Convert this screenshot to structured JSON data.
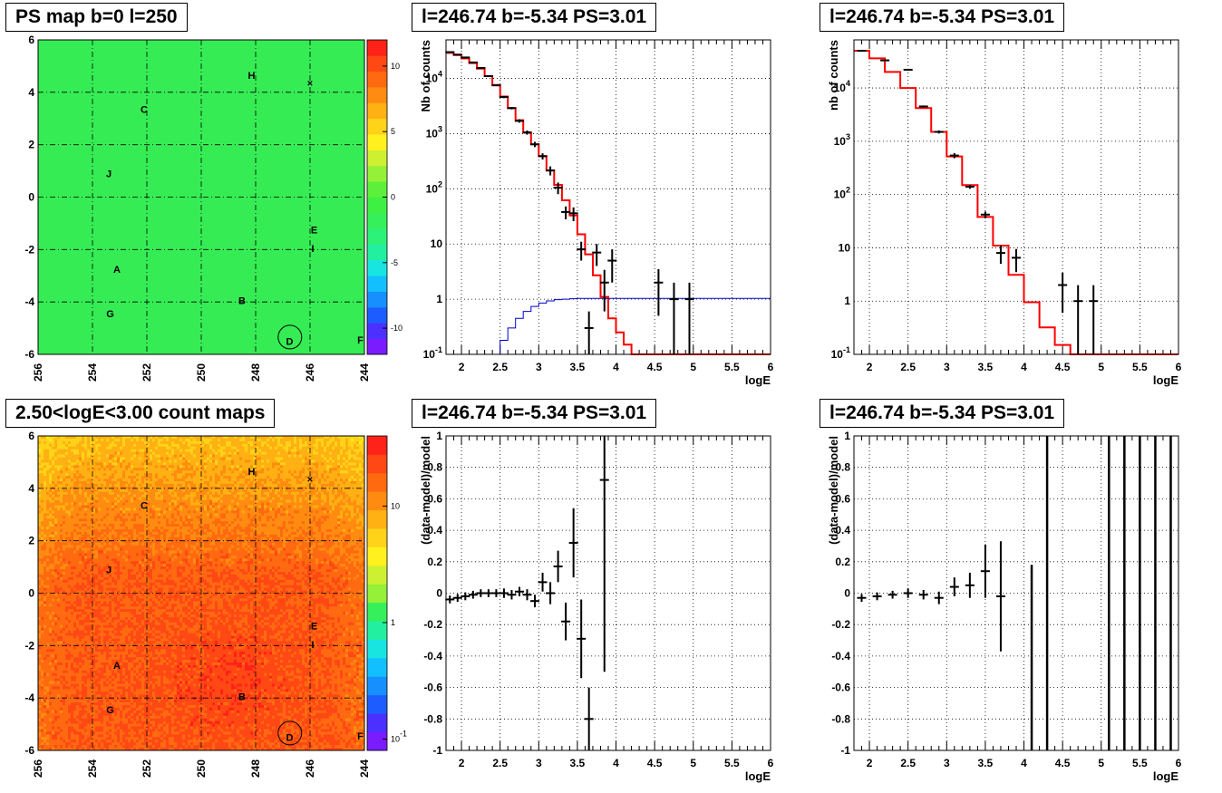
{
  "chart_data": [
    {
      "id": "ps_map",
      "type": "heatmap",
      "title": "PS map b=0 l=250",
      "xlim": [
        256,
        244
      ],
      "ylim": [
        -6,
        6
      ],
      "xticks": [
        "256",
        "254",
        "252",
        "250",
        "248",
        "246",
        "244"
      ],
      "yticks": [
        "-6",
        "-4",
        "-2",
        "0",
        "2",
        "4",
        "6"
      ],
      "grid": true,
      "colorbar": {
        "scale": "linear",
        "range": [
          -12,
          12
        ],
        "ticks": [
          "-10",
          "-5",
          "0",
          "5",
          "10"
        ],
        "palette": [
          "#7a1cff",
          "#4b30ff",
          "#1d5dff",
          "#1790ff",
          "#12bfff",
          "#18e5e0",
          "#22f0a0",
          "#2df27a",
          "#35f05a",
          "#3ef043",
          "#5df03a",
          "#95f038",
          "#cdf030",
          "#fff01e",
          "#ffd318",
          "#ffb012",
          "#ff8c10",
          "#ff6a10",
          "#ff4814",
          "#ff2218"
        ]
      },
      "base_color": "#36ec54",
      "markers": [
        {
          "label": "H",
          "l": 248.15,
          "b": 4.65
        },
        {
          "label": "C",
          "l": 252.1,
          "b": 3.35
        },
        {
          "label": "J",
          "l": 253.4,
          "b": 0.9
        },
        {
          "label": "E",
          "l": 245.85,
          "b": -1.25
        },
        {
          "label": "I",
          "l": 245.9,
          "b": -1.95
        },
        {
          "label": "A",
          "l": 253.1,
          "b": -2.75
        },
        {
          "label": "B",
          "l": 248.5,
          "b": -3.95
        },
        {
          "label": "G",
          "l": 253.35,
          "b": -4.45
        },
        {
          "label": "D",
          "l": 246.75,
          "b": -5.5
        },
        {
          "label": "F",
          "l": 244.15,
          "b": -5.45
        },
        {
          "label": "×",
          "l": 246.0,
          "b": 4.35
        }
      ],
      "circle": {
        "l": 246.74,
        "b": -5.34
      }
    },
    {
      "id": "count_map",
      "type": "heatmap",
      "title": "2.50<logE<3.00 count maps",
      "xlim": [
        256,
        244
      ],
      "ylim": [
        -6,
        6
      ],
      "xticks": [
        "256",
        "254",
        "252",
        "250",
        "248",
        "246",
        "244"
      ],
      "yticks": [
        "-6",
        "-4",
        "-2",
        "0",
        "2",
        "4",
        "6"
      ],
      "grid": true,
      "colorbar": {
        "scale": "log",
        "range": [
          0.08,
          40
        ],
        "ticks": [
          "10^-1",
          "1",
          "10"
        ],
        "palette": [
          "#7a1cff",
          "#4b30ff",
          "#1d5dff",
          "#1790ff",
          "#12bfff",
          "#18e5e0",
          "#22f0a0",
          "#35f05a",
          "#95f038",
          "#cdf030",
          "#fff01e",
          "#ffd318",
          "#ffb012",
          "#ff8c10",
          "#ff6a10",
          "#ff4814",
          "#ff2218"
        ]
      },
      "markers": [
        {
          "label": "H",
          "l": 248.15,
          "b": 4.65
        },
        {
          "label": "C",
          "l": 252.1,
          "b": 3.35
        },
        {
          "label": "J",
          "l": 253.4,
          "b": 0.9
        },
        {
          "label": "E",
          "l": 245.85,
          "b": -1.25
        },
        {
          "label": "I",
          "l": 245.9,
          "b": -1.95
        },
        {
          "label": "A",
          "l": 253.1,
          "b": -2.75
        },
        {
          "label": "B",
          "l": 248.5,
          "b": -3.95
        },
        {
          "label": "G",
          "l": 253.35,
          "b": -4.45
        },
        {
          "label": "D",
          "l": 246.75,
          "b": -5.5
        },
        {
          "label": "F",
          "l": 244.15,
          "b": -5.45
        },
        {
          "label": "×",
          "l": 246.0,
          "b": 4.35
        }
      ],
      "circle": {
        "l": 246.74,
        "b": -5.34
      }
    },
    {
      "id": "spectrum_fine",
      "type": "line",
      "title": "l=246.74 b=-5.34 PS=3.01",
      "xlabel": "logE",
      "ylabel": "Nb of counts",
      "xlim": [
        1.8,
        6
      ],
      "ylim": [
        0.1,
        50000
      ],
      "yscale": "log",
      "grid": true,
      "xticks": [
        "2",
        "2.5",
        "3",
        "3.5",
        "4",
        "4.5",
        "5",
        "5.5",
        "6"
      ],
      "yticks": [
        "10^-1",
        "1",
        "10",
        "10^2",
        "10^3",
        "10^4"
      ],
      "data": [
        [
          1.85,
          30000,
          500
        ],
        [
          1.95,
          27000,
          500
        ],
        [
          2.05,
          24000,
          500
        ],
        [
          2.15,
          19500,
          450
        ],
        [
          2.25,
          15500,
          400
        ],
        [
          2.35,
          11000,
          300
        ],
        [
          2.45,
          7500,
          250
        ],
        [
          2.55,
          4600,
          200
        ],
        [
          2.65,
          2900,
          150
        ],
        [
          2.75,
          1700,
          120
        ],
        [
          2.85,
          1050,
          90
        ],
        [
          2.95,
          640,
          70
        ],
        [
          3.05,
          390,
          50
        ],
        [
          3.15,
          215,
          40
        ],
        [
          3.25,
          105,
          25
        ],
        [
          3.35,
          38,
          10
        ],
        [
          3.45,
          36,
          10
        ],
        [
          3.55,
          8,
          3
        ],
        [
          3.65,
          0.3,
          0.3
        ],
        [
          3.75,
          7,
          3
        ],
        [
          3.85,
          2,
          1.4
        ],
        [
          3.95,
          5,
          3
        ],
        [
          4.55,
          2,
          1.5
        ],
        [
          4.75,
          1,
          0.99
        ],
        [
          4.95,
          1,
          0.99
        ]
      ],
      "series": [
        {
          "name": "model",
          "color": "#ff0000",
          "step_edges": [
            1.8,
            1.9,
            2.0,
            2.1,
            2.2,
            2.3,
            2.4,
            2.5,
            2.6,
            2.7,
            2.8,
            2.9,
            3.0,
            3.1,
            3.2,
            3.3,
            3.4,
            3.5,
            3.6,
            3.7,
            3.8,
            3.9,
            4.0,
            4.1,
            4.2,
            4.3,
            6.0
          ],
          "values": [
            29000,
            26500,
            23000,
            19000,
            15000,
            11000,
            7600,
            4700,
            2900,
            1750,
            1050,
            640,
            390,
            215,
            118,
            62,
            33,
            15,
            6.5,
            2.7,
            1.1,
            0.45,
            0.25,
            0.15,
            0.1,
            0.1
          ]
        },
        {
          "name": "threshold",
          "color": "#0000cc",
          "step_edges": [
            1.8,
            2.4,
            2.5,
            2.6,
            2.7,
            2.8,
            2.9,
            3.0,
            3.1,
            3.2,
            3.3,
            3.4,
            3.5,
            3.6,
            6.0
          ],
          "values": [
            0.1,
            0.1,
            0.18,
            0.3,
            0.45,
            0.6,
            0.74,
            0.85,
            0.93,
            0.98,
            1.0,
            1.02,
            1.03,
            1.03
          ]
        }
      ]
    },
    {
      "id": "spectrum_coarse",
      "type": "line",
      "title": "l=246.74 b=-5.34 PS=3.01",
      "xlabel": "logE",
      "ylabel": "nb of counts",
      "xlim": [
        1.8,
        6
      ],
      "ylim": [
        0.1,
        80000
      ],
      "yscale": "log",
      "grid": true,
      "xticks": [
        "2",
        "2.5",
        "3",
        "3.5",
        "4",
        "4.5",
        "5",
        "5.5",
        "6"
      ],
      "yticks": [
        "10^-1",
        "1",
        "10",
        "10^2",
        "10^3",
        "10^4"
      ],
      "data": [
        [
          1.9,
          50000,
          800
        ],
        [
          2.2,
          33000,
          600
        ],
        [
          2.5,
          22000,
          500
        ],
        [
          2.7,
          4500,
          200
        ],
        [
          2.9,
          1500,
          100
        ],
        [
          3.1,
          540,
          60
        ],
        [
          3.3,
          140,
          12
        ],
        [
          3.5,
          42,
          6
        ],
        [
          3.7,
          8,
          3
        ],
        [
          3.9,
          6.5,
          3
        ],
        [
          4.5,
          2,
          1.4
        ],
        [
          4.7,
          1,
          0.99
        ],
        [
          4.9,
          1,
          0.99
        ]
      ],
      "series": [
        {
          "name": "model",
          "color": "#ff0000",
          "step_edges": [
            1.8,
            2.0,
            2.2,
            2.4,
            2.6,
            2.8,
            3.0,
            3.2,
            3.4,
            3.6,
            3.8,
            4.0,
            4.2,
            4.4,
            4.6,
            6.0
          ],
          "values": [
            50000,
            36000,
            20000,
            10000,
            4200,
            1500,
            520,
            150,
            38,
            11,
            3.1,
            0.95,
            0.32,
            0.15,
            0.1
          ]
        }
      ]
    },
    {
      "id": "residual_fine",
      "type": "scatter",
      "title": "l=246.74 b=-5.34 PS=3.01",
      "xlabel": "logE",
      "ylabel": "(data-model)/model",
      "xlim": [
        1.8,
        6
      ],
      "ylim": [
        -1,
        1
      ],
      "grid": true,
      "xticks": [
        "2",
        "2.5",
        "3",
        "3.5",
        "4",
        "4.5",
        "5",
        "5.5",
        "6"
      ],
      "yticks": [
        "-1",
        "-0.8",
        "-0.6",
        "-0.4",
        "-0.2",
        "0",
        "0.2",
        "0.4",
        "0.6",
        "0.8",
        "1"
      ],
      "data": [
        [
          1.85,
          -0.04,
          0.025
        ],
        [
          1.95,
          -0.03,
          0.025
        ],
        [
          2.05,
          -0.02,
          0.025
        ],
        [
          2.15,
          -0.01,
          0.025
        ],
        [
          2.25,
          0.0,
          0.025
        ],
        [
          2.35,
          0.0,
          0.025
        ],
        [
          2.45,
          0.0,
          0.025
        ],
        [
          2.55,
          0.0,
          0.03
        ],
        [
          2.65,
          -0.01,
          0.03
        ],
        [
          2.75,
          0.01,
          0.03
        ],
        [
          2.85,
          -0.01,
          0.035
        ],
        [
          2.95,
          -0.05,
          0.04
        ],
        [
          3.05,
          0.07,
          0.06
        ],
        [
          3.15,
          0.0,
          0.07
        ],
        [
          3.25,
          0.17,
          0.1
        ],
        [
          3.35,
          -0.18,
          0.12
        ],
        [
          3.45,
          0.32,
          0.22
        ],
        [
          3.55,
          -0.29,
          0.25
        ],
        [
          3.65,
          -0.8,
          0.2
        ],
        [
          3.85,
          0.72,
          1.22
        ]
      ]
    },
    {
      "id": "residual_coarse",
      "type": "scatter",
      "title": "l=246.74 b=-5.34 PS=3.01",
      "xlabel": "logE",
      "ylabel": "(data-model)/model",
      "xlim": [
        1.8,
        6
      ],
      "ylim": [
        -1,
        1
      ],
      "grid": true,
      "xticks": [
        "2",
        "2.5",
        "3",
        "3.5",
        "4",
        "4.5",
        "5",
        "5.5",
        "6"
      ],
      "yticks": [
        "-1",
        "-0.8",
        "-0.6",
        "-0.4",
        "-0.2",
        "0",
        "0.2",
        "0.4",
        "0.6",
        "0.8",
        "1"
      ],
      "data": [
        [
          1.9,
          -0.03,
          0.025
        ],
        [
          2.1,
          -0.02,
          0.025
        ],
        [
          2.3,
          -0.01,
          0.025
        ],
        [
          2.5,
          0.0,
          0.03
        ],
        [
          2.7,
          -0.01,
          0.03
        ],
        [
          2.9,
          -0.03,
          0.04
        ],
        [
          3.1,
          0.04,
          0.06
        ],
        [
          3.3,
          0.05,
          0.08
        ],
        [
          3.5,
          0.14,
          0.17
        ],
        [
          3.7,
          -0.02,
          0.35
        ]
      ],
      "bars": [
        [
          4.1,
          -1,
          0.18
        ],
        [
          4.3,
          -1,
          1
        ],
        [
          5.1,
          -1,
          1
        ],
        [
          5.3,
          -1,
          1
        ],
        [
          5.5,
          -1,
          1
        ],
        [
          5.7,
          -1,
          1
        ],
        [
          5.9,
          -1,
          1
        ]
      ]
    }
  ]
}
